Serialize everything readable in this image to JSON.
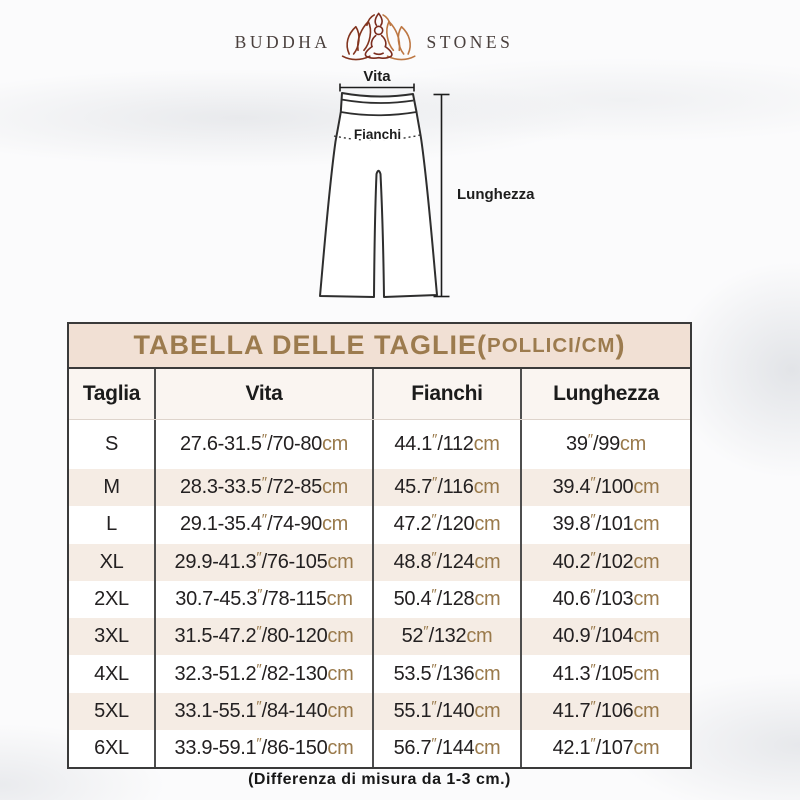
{
  "brand": {
    "word_left": "BUDDHA",
    "word_right": "STONES",
    "icon": "lotus-meditation-icon"
  },
  "diagram": {
    "waist_label": "Vita",
    "hips_label": "Fianchi",
    "length_label": "Lunghezza"
  },
  "size_chart": {
    "title_main": "TABELLA DELLE TAGLIE(",
    "title_unit": "POLLICI/CM",
    "title_close": ")",
    "columns": [
      "Taglia",
      "Vita",
      "Fianchi",
      "Lunghezza"
    ],
    "rows": [
      {
        "taglia": "S",
        "vita": "27.6-31.5″/70-80cm",
        "fianchi": "44.1″/112cm",
        "lunghezza": "39″/99cm"
      },
      {
        "taglia": "M",
        "vita": "28.3-33.5″/72-85cm",
        "fianchi": "45.7″/116cm",
        "lunghezza": "39.4″/100cm"
      },
      {
        "taglia": "L",
        "vita": "29.1-35.4″/74-90cm",
        "fianchi": "47.2″/120cm",
        "lunghezza": "39.8″/101cm"
      },
      {
        "taglia": "XL",
        "vita": "29.9-41.3″/76-105cm",
        "fianchi": "48.8″/124cm",
        "lunghezza": "40.2″/102cm"
      },
      {
        "taglia": "2XL",
        "vita": "30.7-45.3″/78-115cm",
        "fianchi": "50.4″/128cm",
        "lunghezza": "40.6″/103cm"
      },
      {
        "taglia": "3XL",
        "vita": "31.5-47.2″/80-120cm",
        "fianchi": "52″/132cm",
        "lunghezza": "40.9″/104cm"
      },
      {
        "taglia": "4XL",
        "vita": "32.3-51.2″/82-130cm",
        "fianchi": "53.5″/136cm",
        "lunghezza": "41.3″/105cm"
      },
      {
        "taglia": "5XL",
        "vita": "33.1-55.1″/84-140cm",
        "fianchi": "55.1″/140cm",
        "lunghezza": "41.7″/106cm"
      },
      {
        "taglia": "6XL",
        "vita": "33.9-59.1″/86-150cm",
        "fianchi": "56.7″/144cm",
        "lunghezza": "42.1″/107cm"
      }
    ]
  },
  "footer": {
    "note": "(Differenza di misura da 1-3 cm.)"
  },
  "theme": {
    "title_band_bg": "#f1e0d4",
    "title_text_gold": "#9c7b4e",
    "unit_gold": "#9a7a4b",
    "row_alt_bg": "#f5ece4",
    "table_border": "#3a3a3a",
    "lotus_left": "#82341f",
    "lotus_right": "#bd7743",
    "figure_line": "#7b2d1f"
  }
}
